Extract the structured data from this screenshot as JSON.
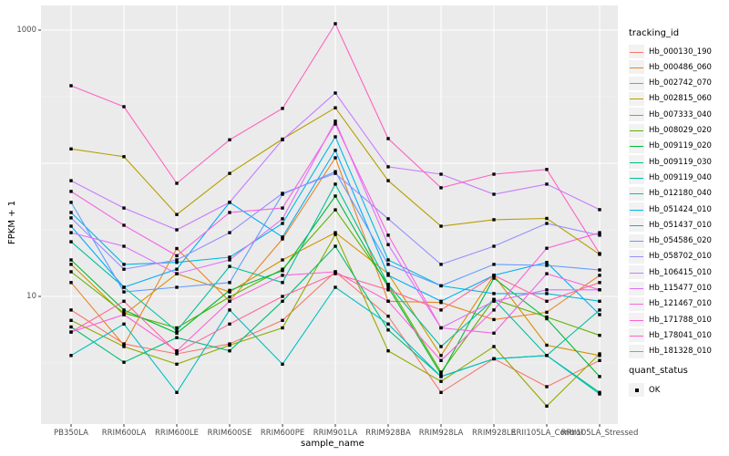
{
  "panel": {
    "background": "#EBEBEB",
    "gridline_color": "#FFFFFF",
    "tick_color": "#333333",
    "axis_text_color": "#4D4D4D",
    "marker_color": "#000000",
    "legend_key_fill": "#F2F2F2"
  },
  "legend": {
    "tracking_title": "tracking_id",
    "quant_title": "quant_status",
    "quant_items": [
      {
        "label": "OK",
        "marker": "black-square"
      }
    ]
  },
  "chart_data": {
    "type": "line",
    "title": "",
    "xlabel": "sample_name",
    "ylabel": "FPKM + 1",
    "yscale": "log10",
    "ylim": [
      1.2,
      1400
    ],
    "grid": true,
    "legend_position": "right",
    "yticks": [
      {
        "value": 1000,
        "label": "1000"
      },
      {
        "value": 10,
        "label": "10"
      }
    ],
    "ygrid_major": [
      10,
      100,
      1000
    ],
    "ygrid_minor": [
      3.162,
      31.62,
      316.2
    ],
    "categories": [
      "PB350LA",
      "RRIM600LA",
      "RRIM600LE",
      "RRIM600SE",
      "RRIM600PE",
      "RRIM901LA",
      "RRIM928BA",
      "RRIM928LA",
      "RRIM928LE",
      "RRII105LA_Control",
      "RRII105LA_Stressed"
    ],
    "series": [
      {
        "name": "Hb_000130_190",
        "color": "#F8766D",
        "values": [
          7.9,
          4.4,
          3.7,
          4.4,
          6.6,
          15.3,
          7.1,
          1.9,
          3.4,
          2.1,
          3.3
        ]
      },
      {
        "name": "Hb_000486_060",
        "color": "#E88526",
        "values": [
          12.7,
          4.3,
          22.9,
          9.2,
          27.0,
          110,
          9.2,
          9.0,
          6.7,
          7.6,
          14.4
        ]
      },
      {
        "name": "Hb_002742_070",
        "color": "#D39200",
        "values": [
          17.4,
          7.3,
          14.8,
          10.8,
          18.8,
          30.1,
          14.8,
          3.6,
          14.4,
          4.3,
          3.6
        ]
      },
      {
        "name": "Hb_002815_060",
        "color": "#B79F00",
        "values": [
          128,
          112,
          41.2,
          84.0,
          152,
          261,
          74.0,
          33.7,
          37.7,
          38.5,
          20.7
        ]
      },
      {
        "name": "Hb_007333_040",
        "color": "#93AA00",
        "values": [
          6.6,
          4.2,
          3.1,
          4.3,
          5.8,
          29.2,
          3.9,
          2.3,
          4.2,
          1.5,
          3.7
        ]
      },
      {
        "name": "Hb_008029_020",
        "color": "#5EB300",
        "values": [
          15.3,
          7.5,
          5.8,
          9.9,
          16.0,
          44.7,
          12.3,
          2.7,
          9.5,
          7.0,
          5.1
        ]
      },
      {
        "name": "Hb_009119_020",
        "color": "#00BA38",
        "values": [
          18.8,
          7.9,
          5.3,
          11.1,
          15.6,
          56.7,
          11.7,
          2.6,
          13.7,
          6.8,
          2.5
        ]
      },
      {
        "name": "Hb_009119_030",
        "color": "#00BF74",
        "values": [
          5.9,
          3.2,
          4.9,
          3.9,
          9.2,
          23.8,
          5.6,
          2.5,
          3.4,
          3.6,
          1.9
        ]
      },
      {
        "name": "Hb_009119_040",
        "color": "#00C19F",
        "values": [
          25.7,
          11.7,
          5.5,
          16.8,
          12.7,
          69.7,
          12.3,
          4.2,
          9.5,
          3.6,
          7.9
        ]
      },
      {
        "name": "Hb_012180_040",
        "color": "#00BFC4",
        "values": [
          3.6,
          6.2,
          1.9,
          7.9,
          3.1,
          11.7,
          6.2,
          2.5,
          3.4,
          3.6,
          1.85
        ]
      },
      {
        "name": "Hb_051424_010",
        "color": "#00B9E3",
        "values": [
          42.7,
          17.4,
          18.0,
          19.7,
          35.3,
          158,
          18.8,
          12.0,
          10.5,
          10.5,
          9.2
        ]
      },
      {
        "name": "Hb_051437_010",
        "color": "#00ADFA",
        "values": [
          33.7,
          11.7,
          16.0,
          50.8,
          27.9,
          125,
          14.4,
          9.2,
          14.4,
          18.0,
          7.3
        ]
      },
      {
        "name": "Hb_054586_020",
        "color": "#619CFF",
        "values": [
          50.8,
          10.8,
          11.7,
          12.7,
          58.5,
          86.5,
          17.4,
          12.0,
          17.4,
          17.1,
          15.8
        ]
      },
      {
        "name": "Hb_058702_010",
        "color": "#9590FF",
        "values": [
          38.9,
          16.0,
          18.8,
          30.1,
          59.4,
          84.0,
          38.3,
          17.4,
          23.8,
          35.3,
          28.8
        ]
      },
      {
        "name": "Hb_106415_010",
        "color": "#C77CFF",
        "values": [
          74.0,
          46.1,
          31.6,
          50.8,
          150,
          337,
          94.0,
          82.7,
          58.5,
          69.7,
          44.8
        ]
      },
      {
        "name": "Hb_115477_010",
        "color": "#DB72FB",
        "values": [
          30.1,
          23.8,
          14.8,
          18.8,
          38.3,
          207,
          24.5,
          5.8,
          9.2,
          11.2,
          11.2
        ]
      },
      {
        "name": "Hb_121467_010",
        "color": "#F564E3",
        "values": [
          61.4,
          34.2,
          20.2,
          42.7,
          46.1,
          197,
          28.8,
          5.8,
          5.3,
          14.8,
          11.2
        ]
      },
      {
        "name": "Hb_171788_010",
        "color": "#FB62D9",
        "values": [
          5.4,
          7.3,
          3.9,
          9.2,
          14.4,
          15.3,
          9.2,
          3.3,
          7.9,
          23.0,
          30.1
        ]
      },
      {
        "name": "Hb_178041_010",
        "color": "#FF61C0",
        "values": [
          382,
          266,
          70.7,
          150,
          258,
          1117,
          153,
          65.4,
          82.7,
          89.8,
          21.0
        ]
      },
      {
        "name": "Hb_181328_010",
        "color": "#FF689E",
        "values": [
          5.4,
          9.2,
          3.8,
          6.2,
          10.0,
          14.8,
          11.2,
          7.9,
          14.4,
          9.2,
          12.7
        ]
      }
    ]
  }
}
